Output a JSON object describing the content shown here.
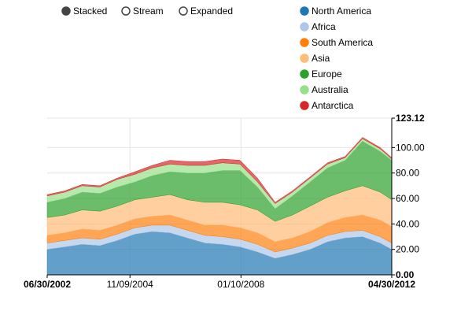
{
  "controls": {
    "options": [
      "Stacked",
      "Stream",
      "Expanded"
    ],
    "selected": "Stacked"
  },
  "chart_data": {
    "type": "area",
    "stacked": true,
    "title": "",
    "xlabel": "",
    "ylabel": "",
    "x_start": "2002-06-30",
    "x_end": "2012-04-30",
    "x_tick_labels": [
      "06/30/2002",
      "11/09/2004",
      "01/10/2008",
      "04/30/2012"
    ],
    "x_tick_dates": [
      "2002-06-30",
      "2004-11-09",
      "2008-01-10",
      "2012-04-30"
    ],
    "x_tick_bold": [
      true,
      false,
      false,
      true
    ],
    "ylim": [
      0,
      123.12
    ],
    "y_tick_labels": [
      "0.00",
      "20.00",
      "40.00",
      "60.00",
      "80.00",
      "100.00",
      "123.12"
    ],
    "y_tick_values": [
      0,
      20,
      40,
      60,
      80,
      100,
      123.12
    ],
    "y_tick_bold": [
      true,
      false,
      false,
      false,
      false,
      false,
      true
    ],
    "grid": true,
    "legend_position": "top-right",
    "x": [
      "2002-06-30",
      "2002-12-31",
      "2003-06-30",
      "2003-12-31",
      "2004-06-30",
      "2004-12-31",
      "2005-06-30",
      "2005-12-31",
      "2006-06-30",
      "2006-12-31",
      "2007-06-30",
      "2007-12-31",
      "2008-06-30",
      "2008-12-31",
      "2009-06-30",
      "2009-12-31",
      "2010-06-30",
      "2010-12-31",
      "2011-06-30",
      "2011-12-31",
      "2012-04-30"
    ],
    "series": [
      {
        "name": "North America",
        "color": "#1f77b4",
        "values": [
          20,
          22,
          24,
          23,
          27,
          32,
          34,
          33,
          29,
          25,
          24,
          22,
          18,
          13,
          16,
          20,
          26,
          29,
          30,
          25,
          20
        ]
      },
      {
        "name": "Africa",
        "color": "#aec7e8",
        "values": [
          5,
          5,
          5,
          5,
          5,
          5,
          5,
          6,
          6,
          6,
          6,
          6,
          6,
          5,
          5,
          5,
          5,
          5,
          5,
          5,
          5
        ]
      },
      {
        "name": "South America",
        "color": "#ff7f0e",
        "values": [
          6,
          6,
          7,
          7,
          7,
          7,
          7,
          8,
          8,
          8,
          9,
          9,
          9,
          8,
          8,
          9,
          10,
          11,
          12,
          13,
          13
        ]
      },
      {
        "name": "Asia",
        "color": "#ffbb78",
        "values": [
          14,
          14,
          15,
          15,
          15,
          15,
          15,
          16,
          16,
          18,
          18,
          18,
          18,
          16,
          18,
          20,
          20,
          21,
          23,
          22,
          21
        ]
      },
      {
        "name": "Europe",
        "color": "#2ca02c",
        "values": [
          12,
          13,
          14,
          14,
          15,
          14,
          17,
          18,
          21,
          23,
          25,
          27,
          18,
          10,
          15,
          19,
          23,
          24,
          35,
          32,
          31
        ]
      },
      {
        "name": "Australia",
        "color": "#98df8a",
        "values": [
          5,
          5,
          5,
          5,
          6,
          6,
          6,
          6,
          6,
          6,
          6,
          5,
          4,
          4,
          3,
          3,
          3,
          2,
          2,
          2,
          1
        ]
      },
      {
        "name": "Antarctica",
        "color": "#d62728",
        "values": [
          1,
          1,
          1,
          1,
          1,
          2,
          2,
          3,
          3,
          3,
          3,
          3,
          3,
          1,
          1,
          1,
          1,
          1,
          1,
          1,
          1
        ]
      }
    ]
  }
}
